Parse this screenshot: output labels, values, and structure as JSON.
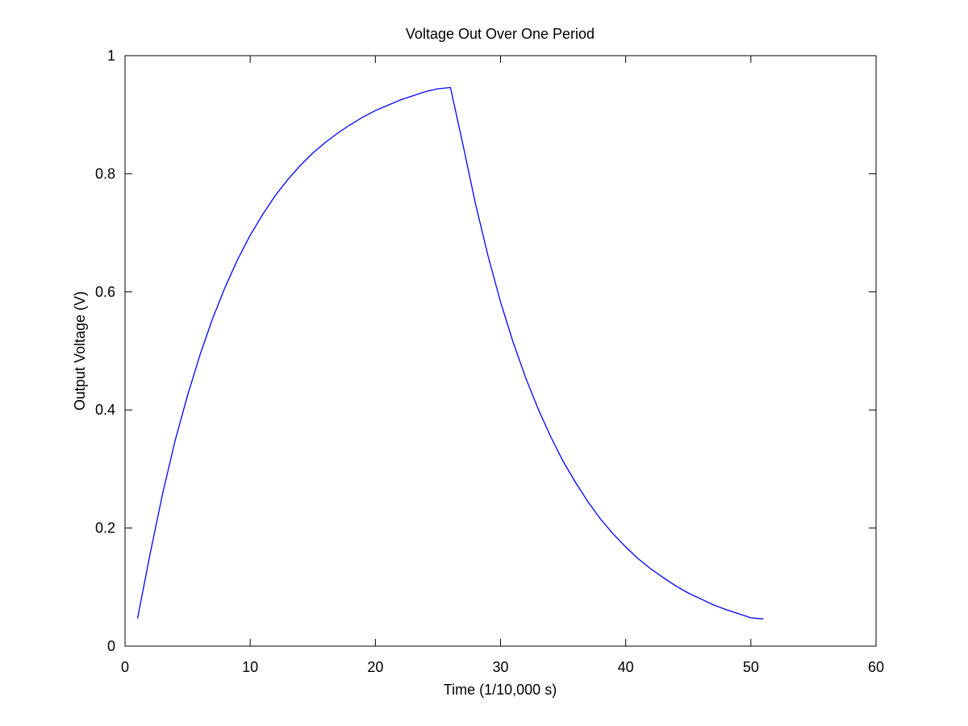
{
  "chart_data": {
    "type": "line",
    "title": "Voltage Out Over One Period",
    "xlabel": "Time (1/10,000 s)",
    "ylabel": "Output Voltage (V)",
    "xlim": [
      0,
      60
    ],
    "ylim": [
      0,
      1
    ],
    "xticks": [
      0,
      10,
      20,
      30,
      40,
      50,
      60
    ],
    "xtick_labels": [
      "0",
      "10",
      "20",
      "30",
      "40",
      "50",
      "60"
    ],
    "yticks": [
      0,
      0.2,
      0.4,
      0.6,
      0.8,
      1
    ],
    "ytick_labels": [
      "0",
      "0.2",
      "0.4",
      "0.6",
      "0.8",
      "1"
    ],
    "grid": false,
    "series_color": "#0000ff",
    "series": [
      {
        "x": [
          1,
          2,
          3,
          4,
          5,
          6,
          7,
          8,
          9,
          10,
          11,
          12,
          13,
          14,
          15,
          16,
          17,
          18,
          19,
          20,
          21,
          22,
          23,
          24,
          25,
          26,
          27,
          28,
          29,
          30,
          31,
          32,
          33,
          34,
          35,
          36,
          37,
          38,
          39,
          40,
          41,
          42,
          43,
          44,
          45,
          46,
          47,
          48,
          49,
          50,
          51
        ],
        "values": [
          0.047,
          0.156,
          0.258,
          0.348,
          0.425,
          0.494,
          0.555,
          0.608,
          0.655,
          0.696,
          0.731,
          0.763,
          0.79,
          0.814,
          0.835,
          0.853,
          0.869,
          0.883,
          0.896,
          0.907,
          0.916,
          0.925,
          0.932,
          0.939,
          0.944,
          0.946,
          0.849,
          0.749,
          0.661,
          0.583,
          0.515,
          0.455,
          0.402,
          0.355,
          0.313,
          0.277,
          0.244,
          0.215,
          0.19,
          0.168,
          0.148,
          0.131,
          0.116,
          0.102,
          0.09,
          0.08,
          0.07,
          0.062,
          0.055,
          0.048,
          0.046
        ]
      }
    ]
  }
}
